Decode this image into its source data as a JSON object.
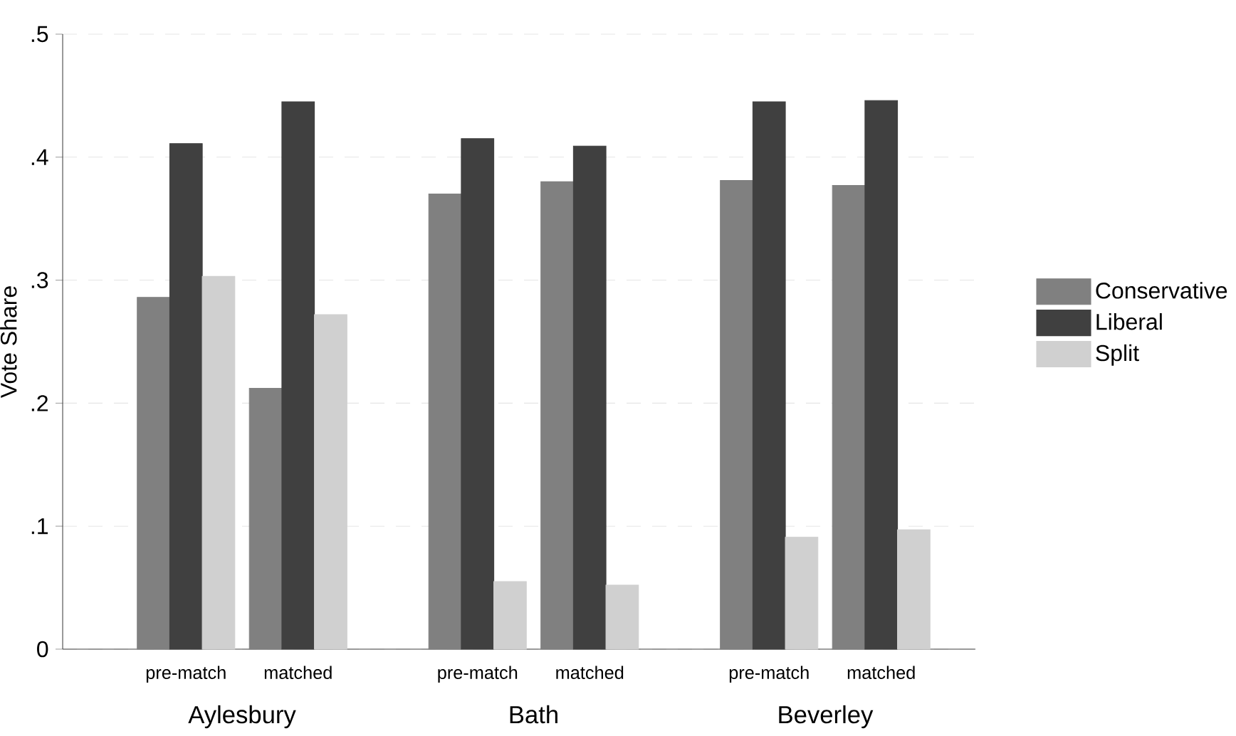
{
  "chart_data": {
    "type": "bar",
    "ylabel": "Vote Share",
    "categories": [
      "pre-match",
      "matched",
      "pre-match",
      "matched",
      "pre-match",
      "matched"
    ],
    "annotations": [
      "Aylesbury",
      "Bath",
      "Beverley"
    ],
    "series": [
      {
        "name": "Conservative",
        "color": "#808080",
        "values": [
          0.286,
          0.212,
          0.37,
          0.38,
          0.381,
          0.377
        ]
      },
      {
        "name": "Liberal",
        "color": "#404040",
        "values": [
          0.411,
          0.445,
          0.415,
          0.409,
          0.445,
          0.446
        ]
      },
      {
        "name": "Split",
        "color": "#d0d0d0",
        "values": [
          0.303,
          0.272,
          0.055,
          0.052,
          0.091,
          0.097
        ]
      }
    ],
    "ylim": [
      0,
      0.5
    ],
    "yticks": [
      {
        "value": 0,
        "label": "0"
      },
      {
        "value": 0.1,
        "label": ".1"
      },
      {
        "value": 0.2,
        "label": ".2"
      },
      {
        "value": 0.3,
        "label": ".3"
      },
      {
        "value": 0.4,
        "label": ".4"
      },
      {
        "value": 0.5,
        "label": ".5"
      }
    ],
    "grid": "y",
    "legend": "right"
  }
}
